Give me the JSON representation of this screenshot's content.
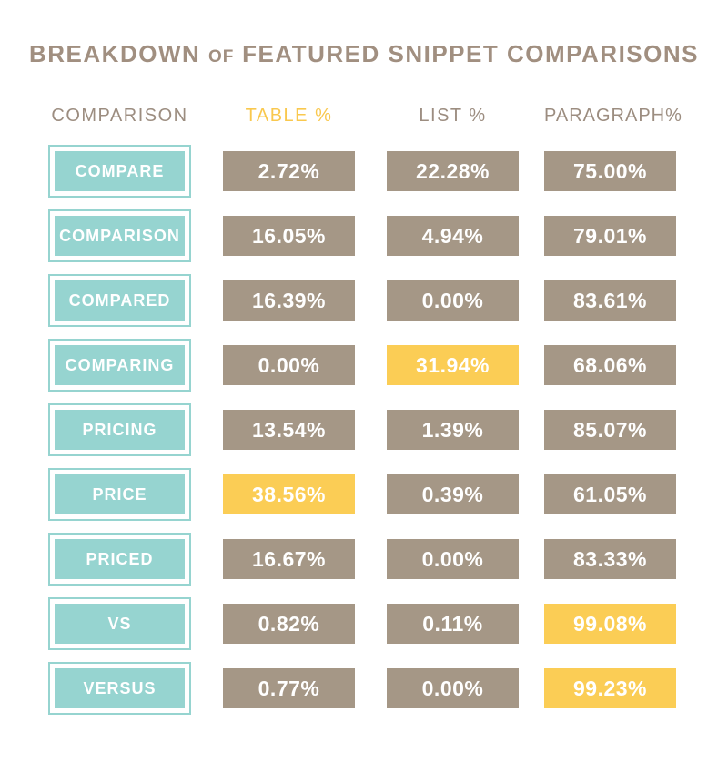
{
  "title": {
    "part1": "BREAKDOWN",
    "of": "OF",
    "part2": "FEATURED SNIPPET COMPARISONS"
  },
  "columns": [
    {
      "label": "COMPARISON"
    },
    {
      "label": "TABLE %",
      "accent": true
    },
    {
      "label": "LIST %"
    },
    {
      "label": "PARAGRAPH%"
    }
  ],
  "rows": [
    {
      "label": "COMPARE",
      "cells": [
        {
          "value": "2.72%"
        },
        {
          "value": "22.28%"
        },
        {
          "value": "75.00%"
        }
      ]
    },
    {
      "label": "COMPARISON",
      "cells": [
        {
          "value": "16.05%"
        },
        {
          "value": "4.94%"
        },
        {
          "value": "79.01%"
        }
      ]
    },
    {
      "label": "COMPARED",
      "cells": [
        {
          "value": "16.39%"
        },
        {
          "value": "0.00%"
        },
        {
          "value": "83.61%"
        }
      ]
    },
    {
      "label": "COMPARING",
      "cells": [
        {
          "value": "0.00%"
        },
        {
          "value": "31.94%",
          "highlighted": true
        },
        {
          "value": "68.06%"
        }
      ]
    },
    {
      "label": "PRICING",
      "cells": [
        {
          "value": "13.54%"
        },
        {
          "value": "1.39%"
        },
        {
          "value": "85.07%"
        }
      ]
    },
    {
      "label": "PRICE",
      "cells": [
        {
          "value": "38.56%",
          "highlighted": true
        },
        {
          "value": "0.39%"
        },
        {
          "value": "61.05%"
        }
      ]
    },
    {
      "label": "PRICED",
      "cells": [
        {
          "value": "16.67%"
        },
        {
          "value": "0.00%"
        },
        {
          "value": "83.33%"
        }
      ]
    },
    {
      "label": "VS",
      "cells": [
        {
          "value": "0.82%"
        },
        {
          "value": "0.11%"
        },
        {
          "value": "99.08%",
          "highlighted": true
        }
      ]
    },
    {
      "label": "VERSUS",
      "cells": [
        {
          "value": "0.77%"
        },
        {
          "value": "0.00%"
        },
        {
          "value": "99.23%",
          "highlighted": true
        }
      ]
    }
  ],
  "colors": {
    "taupe_box": "#a59786",
    "teal_box": "#96d4d0",
    "highlight_yellow": "#fbcd55",
    "header_text": "#9c8d80",
    "header_accent": "#f9c84e",
    "title_text": "#a18f80",
    "box_text": "#ffffff"
  },
  "chart_data": {
    "type": "table",
    "title": "BREAKDOWN OF FEATURED SNIPPET COMPARISONS",
    "row_header": "COMPARISON",
    "categories": [
      "COMPARE",
      "COMPARISON",
      "COMPARED",
      "COMPARING",
      "PRICING",
      "PRICE",
      "PRICED",
      "VS",
      "VERSUS"
    ],
    "series": [
      {
        "name": "TABLE %",
        "values": [
          2.72,
          16.05,
          16.39,
          0.0,
          13.54,
          38.56,
          16.67,
          0.82,
          0.77
        ]
      },
      {
        "name": "LIST %",
        "values": [
          22.28,
          4.94,
          0.0,
          31.94,
          1.39,
          0.39,
          0.0,
          0.11,
          0.0
        ]
      },
      {
        "name": "PARAGRAPH%",
        "values": [
          75.0,
          79.01,
          83.61,
          68.06,
          85.07,
          61.05,
          83.33,
          99.08,
          99.23
        ]
      }
    ],
    "highlighted_cells": [
      {
        "category": "COMPARING",
        "series": "LIST %"
      },
      {
        "category": "PRICE",
        "series": "TABLE %"
      },
      {
        "category": "VS",
        "series": "PARAGRAPH%"
      },
      {
        "category": "VERSUS",
        "series": "PARAGRAPH%"
      }
    ],
    "units": "percent"
  }
}
